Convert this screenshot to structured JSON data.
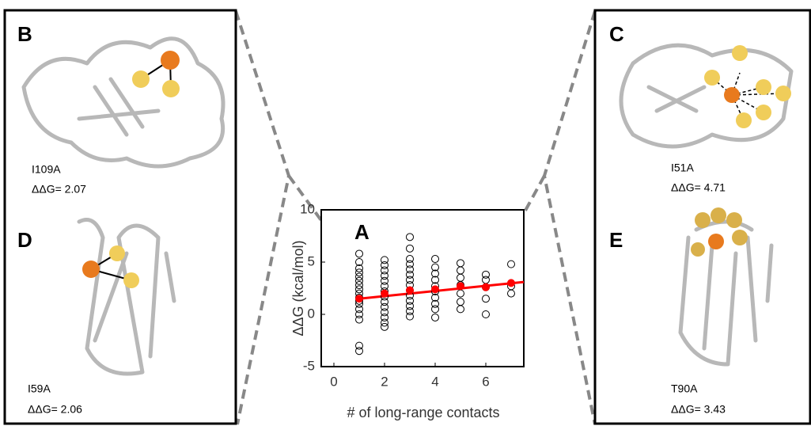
{
  "panels": [
    {
      "label": "B",
      "mutation": "I109A",
      "ddg": "ΔΔG= 2.07"
    },
    {
      "label": "D",
      "mutation": "I59A",
      "ddg": "ΔΔG= 2.06"
    },
    {
      "label": "C",
      "mutation": "I51A",
      "ddg": "ΔΔG= 4.71"
    },
    {
      "label": "E",
      "mutation": "T90A",
      "ddg": "ΔΔG= 3.43"
    }
  ],
  "chart_data": {
    "type": "scatter",
    "label": "A",
    "xlabel": "# of long-range contacts",
    "ylabel": "ΔΔG (kcal/mol)",
    "xlim": [
      -0.5,
      7.5
    ],
    "ylim": [
      -5,
      10
    ],
    "xticks": [
      0,
      2,
      4,
      6
    ],
    "yticks": [
      -5,
      0,
      5,
      10
    ],
    "series": [
      {
        "color": "#000000",
        "marker": "open",
        "x": [
          1,
          1,
          1,
          1,
          1,
          1,
          1,
          1,
          1,
          1,
          1,
          1,
          1,
          1,
          1,
          1,
          1,
          2,
          2,
          2,
          2,
          2,
          2,
          2,
          2,
          2,
          2,
          2,
          2,
          2,
          2,
          3,
          3,
          3,
          3,
          3,
          3,
          3,
          3,
          3,
          3,
          3,
          3,
          3,
          3,
          4,
          4,
          4,
          4,
          4,
          4,
          4,
          4,
          4,
          4,
          5,
          5,
          5,
          5,
          5,
          5,
          5,
          6,
          6,
          6,
          6,
          6,
          7,
          7,
          7
        ],
        "values": [
          -3.5,
          -3,
          -0.5,
          0,
          0.5,
          1,
          1.3,
          1.6,
          2,
          2.4,
          2.8,
          3.2,
          3.6,
          4,
          4.4,
          5,
          5.8,
          -1.2,
          -0.8,
          -0.3,
          0.2,
          0.7,
          1.2,
          1.7,
          2.2,
          2.7,
          3.2,
          3.7,
          4.2,
          4.7,
          5.2,
          -0.2,
          0.3,
          0.8,
          1.3,
          1.8,
          2.3,
          2.8,
          3.3,
          3.8,
          4.3,
          4.8,
          5.3,
          6.3,
          7.4,
          -0.3,
          0.5,
          1,
          1.6,
          2.2,
          2.7,
          3.3,
          3.9,
          4.5,
          5.3,
          0.5,
          1.2,
          2,
          2.8,
          3.5,
          4.2,
          4.9,
          0,
          1.5,
          2.6,
          3.3,
          3.8,
          2,
          2.7,
          4.8
        ]
      },
      {
        "color": "#ff0000",
        "marker": "filled",
        "x": [
          1,
          2,
          3,
          4,
          5,
          6,
          7
        ],
        "values": [
          1.5,
          2.0,
          2.3,
          2.4,
          2.7,
          2.6,
          3.0
        ]
      }
    ],
    "fit": {
      "color": "#ff0000",
      "x": [
        1,
        7.5
      ],
      "values": [
        1.5,
        3.1
      ]
    }
  }
}
